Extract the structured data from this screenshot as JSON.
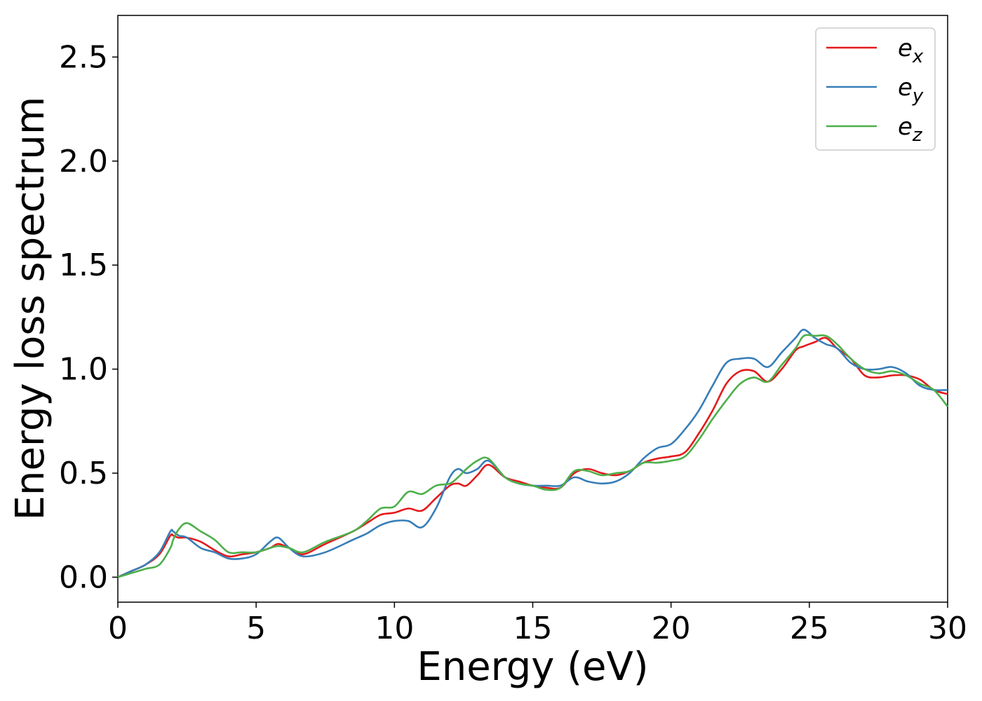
{
  "chart_data": {
    "type": "line",
    "xlabel": "Energy (eV)",
    "ylabel": "Energy loss spectrum",
    "xlim": [
      0,
      30
    ],
    "ylim": [
      -0.12,
      2.7
    ],
    "x_ticks": [
      0,
      5,
      10,
      15,
      20,
      25,
      30
    ],
    "x_tick_labels": [
      "0",
      "5",
      "10",
      "15",
      "20",
      "25",
      "30"
    ],
    "y_ticks": [
      0.0,
      0.5,
      1.0,
      1.5,
      2.0,
      2.5
    ],
    "y_tick_labels": [
      "0.0",
      "0.5",
      "1.0",
      "1.5",
      "2.0",
      "2.5"
    ],
    "grid": false,
    "legend_position": "top-right",
    "x": [
      0,
      0.5,
      1,
      1.5,
      1.9,
      2.0,
      2.2,
      2.5,
      3.0,
      3.5,
      4.0,
      4.5,
      5.0,
      5.5,
      5.8,
      6.2,
      6.7,
      7.5,
      8.5,
      9.0,
      9.5,
      10.0,
      10.5,
      11.0,
      11.5,
      12.0,
      12.3,
      12.6,
      13.0,
      13.4,
      14.0,
      14.5,
      15.0,
      15.5,
      16.0,
      16.5,
      17.0,
      17.5,
      18.0,
      18.5,
      19.0,
      19.5,
      20.0,
      20.5,
      21.0,
      21.5,
      22.0,
      22.5,
      23.0,
      23.5,
      24.0,
      24.5,
      24.8,
      25.2,
      25.6,
      26.0,
      26.5,
      27.0,
      27.5,
      28.0,
      28.5,
      29.0,
      29.5,
      30.0
    ],
    "series": [
      {
        "name": "e",
        "subscript": "x",
        "color": "#e41a1c",
        "values": [
          0.0,
          0.03,
          0.06,
          0.11,
          0.2,
          0.2,
          0.19,
          0.19,
          0.17,
          0.13,
          0.1,
          0.11,
          0.12,
          0.14,
          0.16,
          0.14,
          0.11,
          0.16,
          0.22,
          0.26,
          0.3,
          0.31,
          0.33,
          0.32,
          0.38,
          0.44,
          0.45,
          0.44,
          0.49,
          0.54,
          0.48,
          0.46,
          0.44,
          0.43,
          0.43,
          0.5,
          0.52,
          0.5,
          0.49,
          0.51,
          0.55,
          0.57,
          0.58,
          0.6,
          0.69,
          0.8,
          0.93,
          0.99,
          0.99,
          0.94,
          1.0,
          1.09,
          1.11,
          1.13,
          1.15,
          1.1,
          1.05,
          0.97,
          0.96,
          0.97,
          0.97,
          0.95,
          0.9,
          0.88
        ]
      },
      {
        "name": "e",
        "subscript": "y",
        "color": "#377eb8",
        "values": [
          0.0,
          0.03,
          0.06,
          0.12,
          0.22,
          0.22,
          0.2,
          0.19,
          0.14,
          0.12,
          0.09,
          0.09,
          0.11,
          0.17,
          0.19,
          0.14,
          0.1,
          0.12,
          0.18,
          0.21,
          0.25,
          0.27,
          0.27,
          0.24,
          0.33,
          0.48,
          0.52,
          0.5,
          0.52,
          0.56,
          0.48,
          0.45,
          0.44,
          0.44,
          0.44,
          0.48,
          0.46,
          0.45,
          0.46,
          0.5,
          0.57,
          0.62,
          0.64,
          0.71,
          0.8,
          0.92,
          1.03,
          1.05,
          1.05,
          1.01,
          1.08,
          1.15,
          1.19,
          1.15,
          1.12,
          1.1,
          1.03,
          1.0,
          1.0,
          1.01,
          0.98,
          0.92,
          0.9,
          0.9
        ]
      },
      {
        "name": "e",
        "subscript": "z",
        "color": "#4daf4a",
        "values": [
          0.0,
          0.02,
          0.04,
          0.06,
          0.14,
          0.18,
          0.23,
          0.26,
          0.22,
          0.18,
          0.12,
          0.12,
          0.12,
          0.14,
          0.15,
          0.14,
          0.12,
          0.17,
          0.22,
          0.27,
          0.33,
          0.34,
          0.41,
          0.4,
          0.44,
          0.45,
          0.48,
          0.52,
          0.56,
          0.57,
          0.48,
          0.45,
          0.44,
          0.42,
          0.43,
          0.51,
          0.51,
          0.49,
          0.5,
          0.51,
          0.55,
          0.55,
          0.56,
          0.58,
          0.66,
          0.76,
          0.85,
          0.93,
          0.96,
          0.94,
          1.02,
          1.1,
          1.16,
          1.16,
          1.16,
          1.12,
          1.05,
          1.0,
          0.98,
          0.99,
          0.97,
          0.93,
          0.9,
          0.82
        ]
      }
    ]
  }
}
